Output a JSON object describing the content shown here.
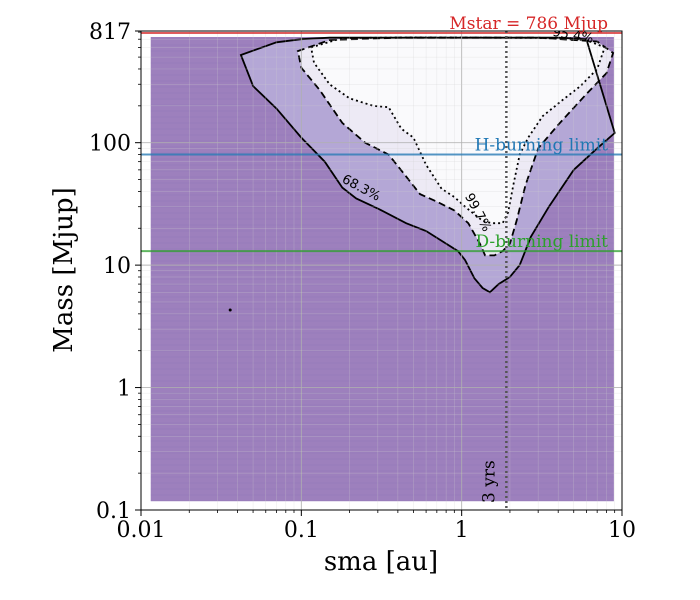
{
  "chart_data": {
    "type": "heatmap",
    "title": "",
    "xlabel": "sma [au]",
    "ylabel": "Mass [Mjup]",
    "xscale": "log",
    "yscale": "log",
    "xlim": [
      0.01,
      10
    ],
    "ylim": [
      0.1,
      817
    ],
    "grid": true,
    "xticks": [
      {
        "value": 0.01,
        "label": "0.01"
      },
      {
        "value": 0.1,
        "label": "0.1"
      },
      {
        "value": 1,
        "label": "1"
      },
      {
        "value": 10,
        "label": "10"
      }
    ],
    "yticks": [
      {
        "value": 0.1,
        "label": "0.1"
      },
      {
        "value": 1,
        "label": "1"
      },
      {
        "value": 10,
        "label": "10"
      },
      {
        "value": 100,
        "label": "100"
      },
      {
        "value": 817,
        "label": "817"
      }
    ],
    "background_region": {
      "sma_range": [
        0.0115,
        8.9
      ],
      "mass_range": [
        0.118,
        730
      ],
      "color": "#9d80bd"
    },
    "reference_lines": [
      {
        "orientation": "horizontal",
        "value": 786,
        "label": "Mstar = 786 Mjup",
        "color": "#d62728"
      },
      {
        "orientation": "horizontal",
        "value": 80,
        "label": "H-burning limit",
        "color": "#1f77b4"
      },
      {
        "orientation": "horizontal",
        "value": 13,
        "label": "D-burning limit",
        "color": "#2ca02c"
      },
      {
        "orientation": "vertical",
        "value": 1.9,
        "label": "3 yrs",
        "color": "#555555"
      }
    ],
    "contours": [
      {
        "level": "68.3%",
        "label": "68.3%",
        "style": "solid",
        "fill": "#b4a7d6",
        "points": [
          [
            0.042,
            520
          ],
          [
            0.07,
            660
          ],
          [
            0.1,
            700
          ],
          [
            0.15,
            720
          ],
          [
            0.3,
            720
          ],
          [
            0.5,
            720
          ],
          [
            1,
            720
          ],
          [
            2,
            720
          ],
          [
            4,
            720
          ],
          [
            6,
            700
          ],
          [
            9,
            120
          ],
          [
            7,
            90
          ],
          [
            5,
            60
          ],
          [
            3.5,
            30
          ],
          [
            2.7,
            17
          ],
          [
            2.3,
            10
          ],
          [
            2,
            8
          ],
          [
            1.7,
            7
          ],
          [
            1.5,
            6
          ],
          [
            1.35,
            6.5
          ],
          [
            1.2,
            7.8
          ],
          [
            1.05,
            11
          ],
          [
            0.95,
            13
          ],
          [
            0.8,
            15
          ],
          [
            0.6,
            19
          ],
          [
            0.45,
            22
          ],
          [
            0.3,
            29
          ],
          [
            0.22,
            35
          ],
          [
            0.18,
            43
          ],
          [
            0.14,
            70
          ],
          [
            0.1,
            110
          ],
          [
            0.07,
            190
          ],
          [
            0.05,
            290
          ],
          [
            0.042,
            520
          ]
        ]
      },
      {
        "level": "95.4%",
        "label": "95.4%",
        "style": "dashed",
        "fill": "#edeaf5",
        "points": [
          [
            0.095,
            560
          ],
          [
            0.15,
            690
          ],
          [
            0.4,
            720
          ],
          [
            1,
            720
          ],
          [
            3,
            720
          ],
          [
            7,
            670
          ],
          [
            8.8,
            540
          ],
          [
            8,
            370
          ],
          [
            6,
            250
          ],
          [
            4,
            140
          ],
          [
            3,
            90
          ],
          [
            2.5,
            45
          ],
          [
            2.2,
            23
          ],
          [
            2,
            15
          ],
          [
            1.8,
            13
          ],
          [
            1.6,
            12
          ],
          [
            1.4,
            12
          ],
          [
            1.3,
            15
          ],
          [
            1.1,
            22
          ],
          [
            0.9,
            28
          ],
          [
            0.7,
            33
          ],
          [
            0.55,
            38
          ],
          [
            0.45,
            53
          ],
          [
            0.35,
            80
          ],
          [
            0.25,
            100
          ],
          [
            0.18,
            145
          ],
          [
            0.13,
            270
          ],
          [
            0.1,
            410
          ],
          [
            0.095,
            560
          ]
        ]
      },
      {
        "level": "99.7%",
        "label": "99.7%",
        "style": "dotted",
        "fill": "#fafafc",
        "points": [
          [
            0.115,
            600
          ],
          [
            0.18,
            715
          ],
          [
            0.5,
            725
          ],
          [
            1.2,
            722
          ],
          [
            3,
            718
          ],
          [
            6,
            690
          ],
          [
            7.8,
            600
          ],
          [
            7,
            400
          ],
          [
            5.5,
            290
          ],
          [
            4.2,
            220
          ],
          [
            3.2,
            165
          ],
          [
            2.6,
            110
          ],
          [
            2.3,
            80
          ],
          [
            2.1,
            45
          ],
          [
            1.95,
            27
          ],
          [
            1.8,
            22
          ],
          [
            1.55,
            22
          ],
          [
            1.35,
            23
          ],
          [
            1.2,
            26
          ],
          [
            1.05,
            30
          ],
          [
            0.9,
            36
          ],
          [
            0.75,
            42
          ],
          [
            0.6,
            66
          ],
          [
            0.5,
            110
          ],
          [
            0.42,
            130
          ],
          [
            0.35,
            195
          ],
          [
            0.28,
            200
          ],
          [
            0.2,
            230
          ],
          [
            0.15,
            300
          ],
          [
            0.12,
            450
          ],
          [
            0.115,
            600
          ]
        ]
      }
    ],
    "contour_labels": [
      {
        "text": "68.3%",
        "x": 0.23,
        "y": 40
      },
      {
        "text": "95.4%",
        "x": 4.9,
        "y": 700
      },
      {
        "text": "99.7%",
        "x": 1.2,
        "y": 26
      }
    ],
    "stray_point": {
      "x": 0.036,
      "y": 4.3
    }
  }
}
